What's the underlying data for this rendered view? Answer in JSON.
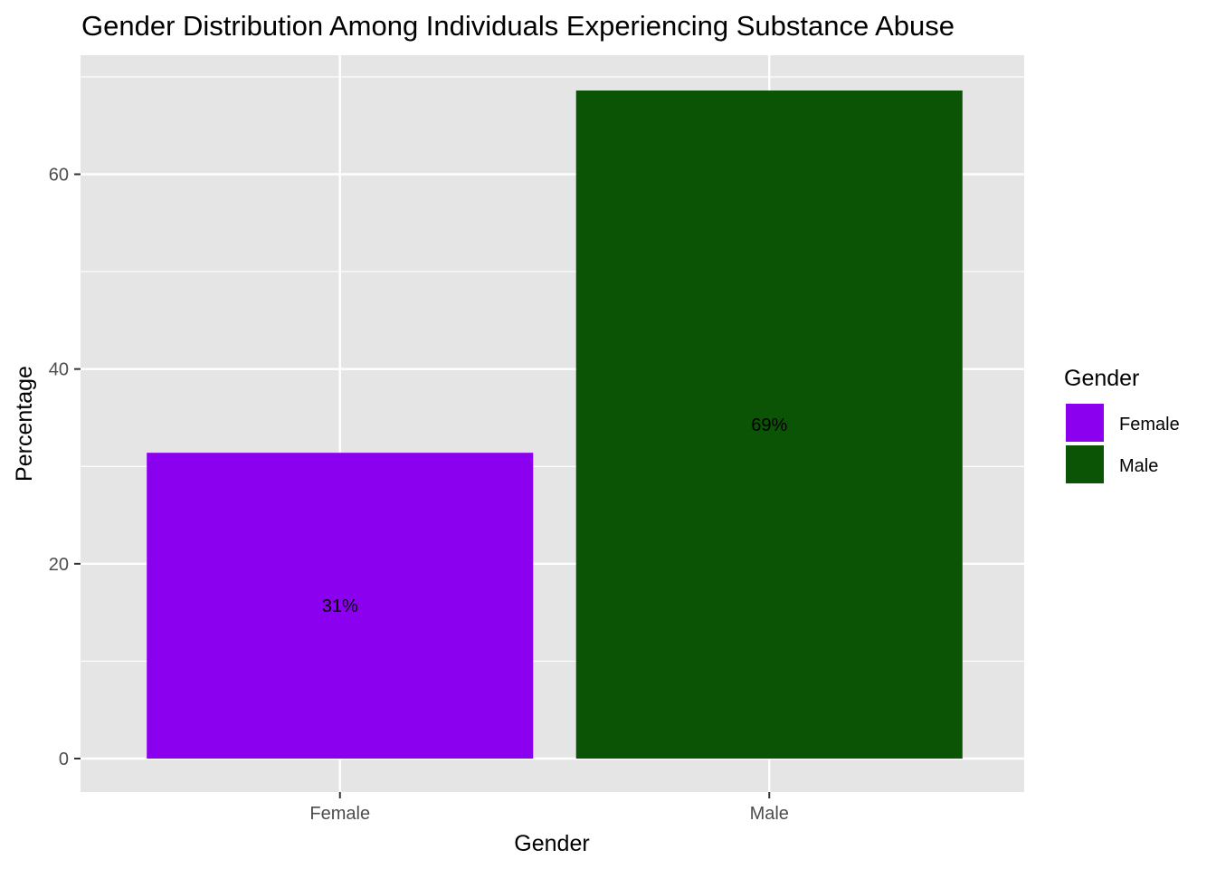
{
  "chart_data": {
    "type": "bar",
    "title": "Gender Distribution Among Individuals Experiencing Substance Abuse",
    "xlabel": "Gender",
    "ylabel": "Percentage",
    "categories": [
      "Female",
      "Male"
    ],
    "values": [
      31.4,
      68.6
    ],
    "data_labels": [
      "31%",
      "69%"
    ],
    "colors": [
      "#8B00EE",
      "#0C5405"
    ],
    "ylim": [
      0,
      70
    ],
    "yticks": [
      0,
      20,
      40,
      60
    ],
    "ytick_labels": [
      "0",
      "20",
      "40",
      "60"
    ],
    "grid": true,
    "legend": {
      "title": "Gender",
      "position": "right",
      "entries": [
        "Female",
        "Male"
      ]
    }
  }
}
